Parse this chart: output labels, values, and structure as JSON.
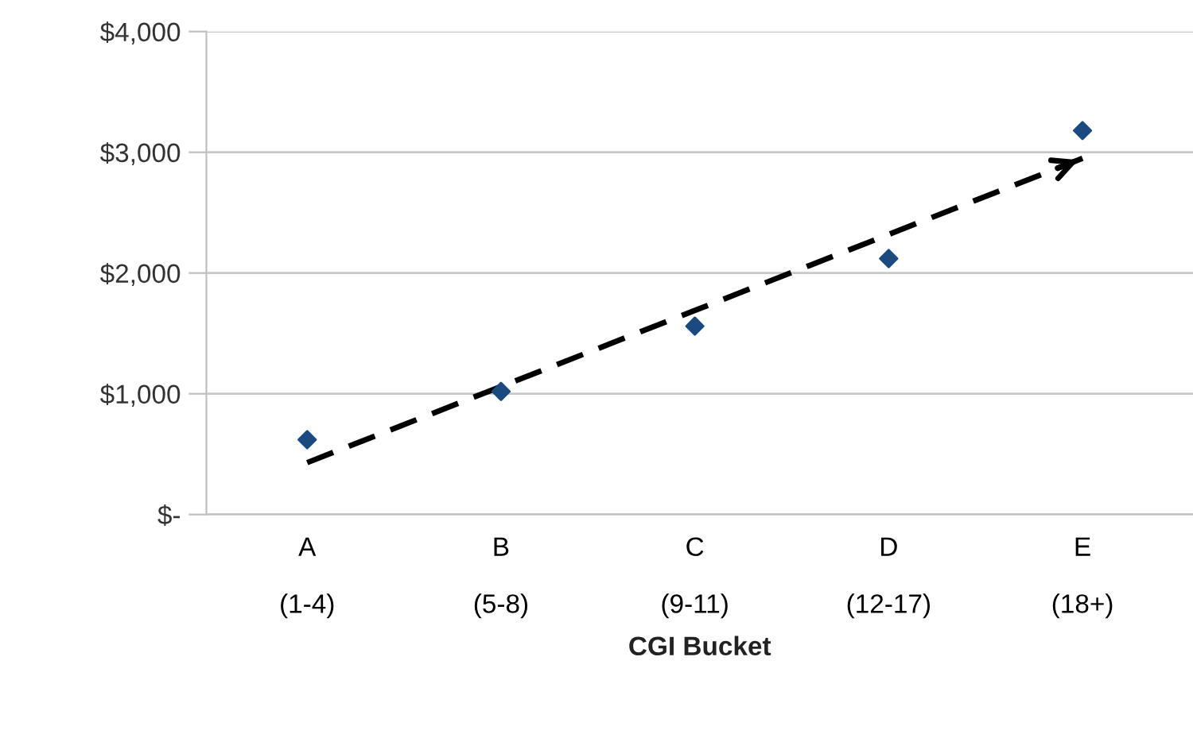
{
  "chart_data": {
    "type": "scatter",
    "xlabel": "CGI Bucket",
    "categories": [
      "A\n\n(1-4)",
      "B\n\n(5-8)",
      "C\n\n(9-11)",
      "D\n\n(12-17)",
      "E\n\n(18+)"
    ],
    "series": [
      {
        "color": "#1b4a80",
        "marker": "diamond",
        "values": [
          620,
          1020,
          1560,
          2120,
          3180
        ]
      },
      {
        "type": "line",
        "color": "#000000",
        "marker": "none",
        "line_style": "dashed",
        "values": [
          430,
          1060,
          1690,
          2320,
          2950
        ]
      }
    ],
    "ylim": [
      0,
      4000
    ],
    "yticks": [
      {
        "value": 0,
        "label": "$-"
      },
      {
        "value": 1000,
        "label": "$1,000"
      },
      {
        "value": 2000,
        "label": "$2,000"
      },
      {
        "value": 3000,
        "label": "$3,000"
      },
      {
        "value": 4000,
        "label": "$4,000"
      }
    ],
    "grid": "y",
    "legend": false
  }
}
